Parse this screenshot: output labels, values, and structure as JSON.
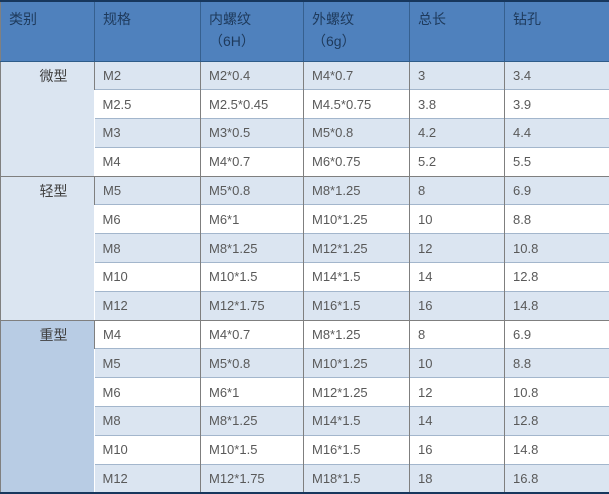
{
  "table": {
    "headers": [
      {
        "label": "类别",
        "sub": ""
      },
      {
        "label": "规格",
        "sub": ""
      },
      {
        "label": "内螺纹",
        "sub": "（6H）"
      },
      {
        "label": "外螺纹",
        "sub": "（6g）"
      },
      {
        "label": "总长",
        "sub": ""
      },
      {
        "label": "钻孔",
        "sub": ""
      }
    ],
    "groups": [
      {
        "category": "微型",
        "rows": [
          [
            "M2",
            "M2*0.4",
            "M4*0.7",
            "3",
            "3.4"
          ],
          [
            "M2.5",
            "M2.5*0.45",
            "M4.5*0.75",
            "3.8",
            "3.9"
          ],
          [
            "M3",
            "M3*0.5",
            "M5*0.8",
            "4.2",
            "4.4"
          ],
          [
            "M4",
            "M4*0.7",
            "M6*0.75",
            "5.2",
            "5.5"
          ]
        ]
      },
      {
        "category": "轻型",
        "rows": [
          [
            "M5",
            "M5*0.8",
            "M8*1.25",
            "8",
            "6.9"
          ],
          [
            "M6",
            "M6*1",
            "M10*1.25",
            "10",
            "8.8"
          ],
          [
            "M8",
            "M8*1.25",
            "M12*1.25",
            "12",
            "10.8"
          ],
          [
            "M10",
            "M10*1.5",
            "M14*1.5",
            "14",
            "12.8"
          ],
          [
            "M12",
            "M12*1.75",
            "M16*1.5",
            "16",
            "14.8"
          ]
        ]
      },
      {
        "category": "重型",
        "rows": [
          [
            "M4",
            "M4*0.7",
            "M8*1.25",
            "8",
            "6.9"
          ],
          [
            "M5",
            "M5*0.8",
            "M10*1.25",
            "10",
            "8.8"
          ],
          [
            "M6",
            "M6*1",
            "M12*1.25",
            "12",
            "10.8"
          ],
          [
            "M8",
            "M8*1.25",
            "M14*1.5",
            "14",
            "12.8"
          ],
          [
            "M10",
            "M10*1.5",
            "M16*1.5",
            "16",
            "14.8"
          ],
          [
            "M12",
            "M12*1.75",
            "M18*1.5",
            "18",
            "16.8"
          ]
        ]
      }
    ],
    "colors": {
      "header_bg": "#4f81bd",
      "stripe_bg": "#dbe5f1",
      "heavy_category_bg": "#b8cce4",
      "outer_border": "#17375d",
      "body_text": "#595959"
    }
  }
}
